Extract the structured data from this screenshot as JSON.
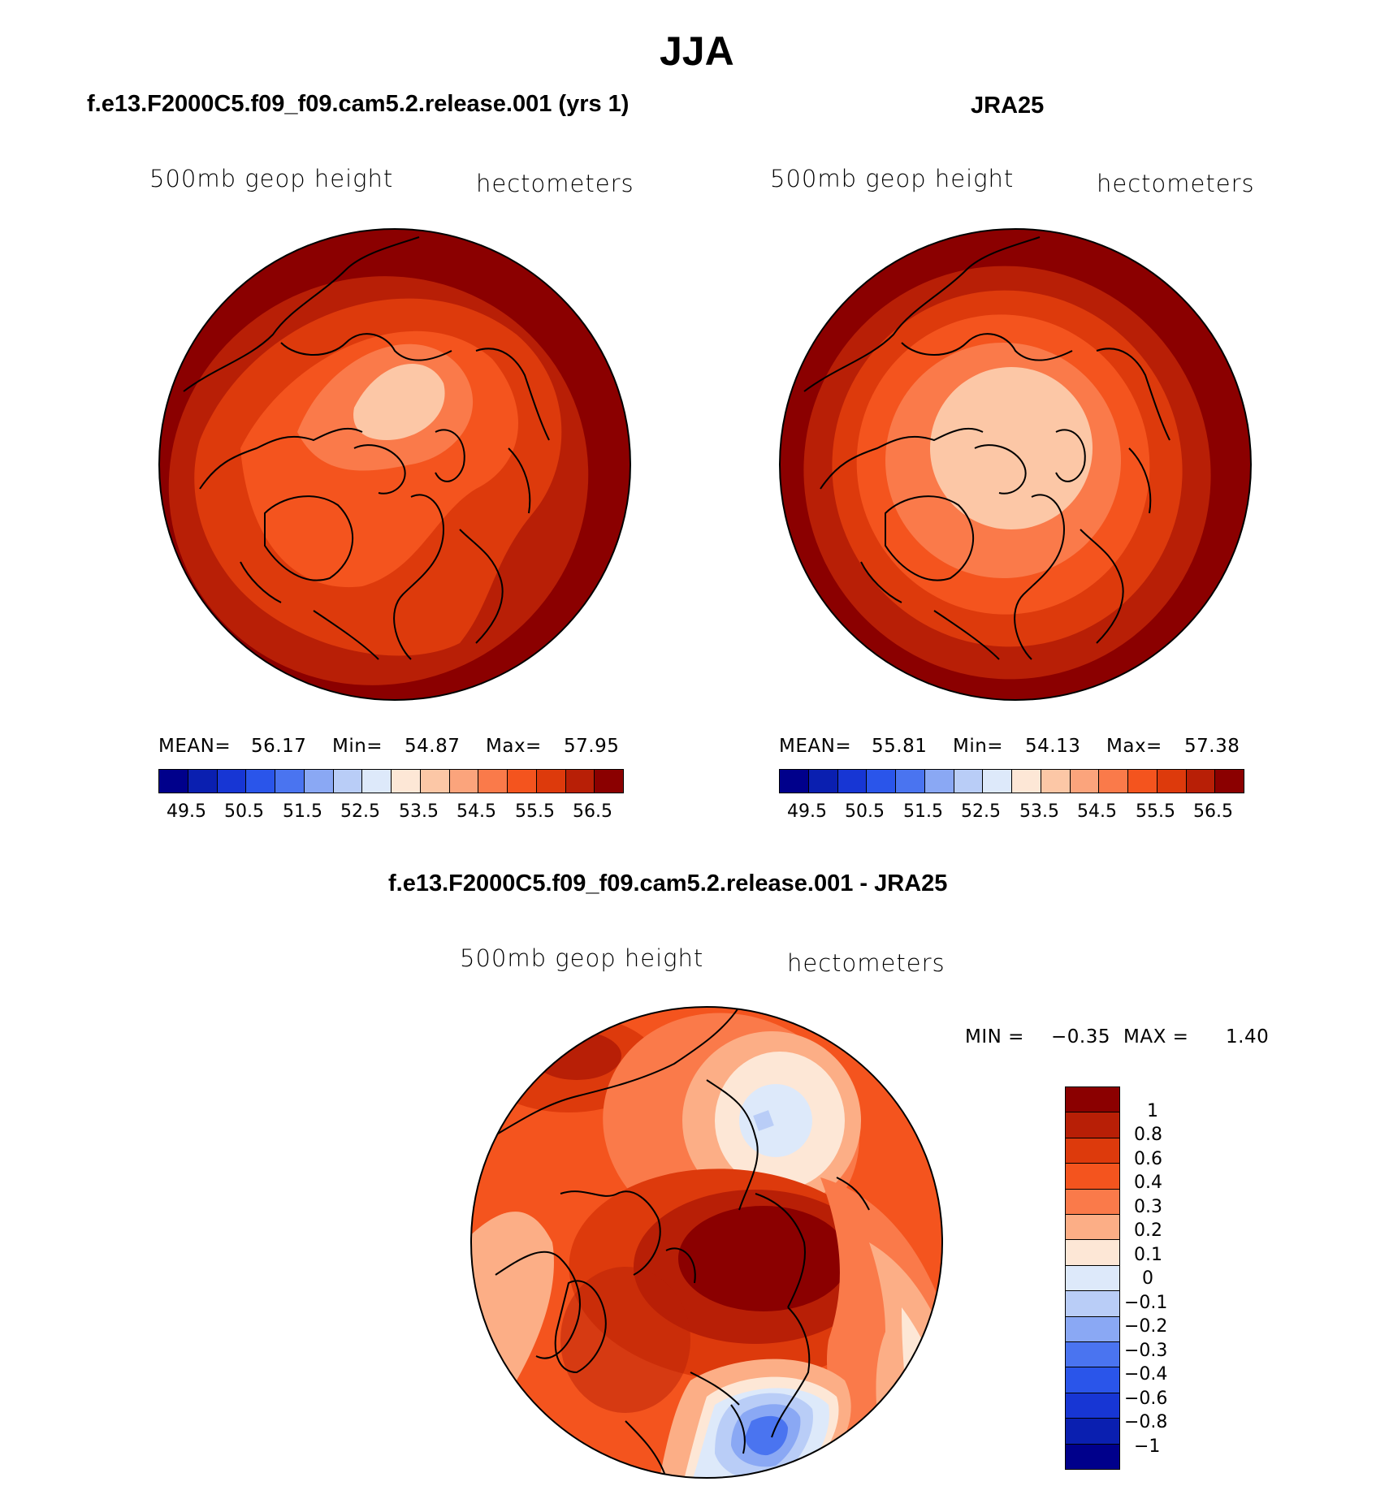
{
  "figure": {
    "season": "JJA"
  },
  "panels": [
    {
      "title": "f.e13.F2000C5.f09_f09.cam5.2.release.001 (yrs 1)",
      "left_label": "500mb geop height",
      "right_label": "hectometers",
      "stats": {
        "mean_label": "MEAN=",
        "mean": "56.17",
        "min_label": "Min=",
        "min": "54.87",
        "max_label": "Max=",
        "max": "57.95"
      }
    },
    {
      "title": "JRA25",
      "left_label": "500mb geop height",
      "right_label": "hectometers",
      "stats": {
        "mean_label": "MEAN=",
        "mean": "55.81",
        "min_label": "Min=",
        "min": "54.13",
        "max_label": "Max=",
        "max": "57.38"
      }
    },
    {
      "title": "f.e13.F2000C5.f09_f09.cam5.2.release.001 - JRA25",
      "left_label": "500mb geop height",
      "right_label": "hectometers",
      "stats": {
        "min_label": "MIN =",
        "min": "−0.35",
        "max_label": "MAX =",
        "max": "1.40"
      }
    }
  ],
  "colorbar_abs": {
    "colors": [
      "#00008b",
      "#0a1fb0",
      "#1736d4",
      "#2a55ea",
      "#4a74f0",
      "#8aa8f4",
      "#b9cdf7",
      "#dde9fa",
      "#fde7d6",
      "#fcc7a6",
      "#fba47c",
      "#fa7a4a",
      "#f4541e",
      "#dd3a0c",
      "#b81f06",
      "#8b0000"
    ],
    "ticks": [
      "49.5",
      "50.5",
      "51.5",
      "52.5",
      "53.5",
      "54.5",
      "55.5",
      "56.5"
    ]
  },
  "colorbar_diff": {
    "colors": [
      "#8b0000",
      "#b81f06",
      "#dd3a0c",
      "#f4541e",
      "#fa7a4a",
      "#fcae86",
      "#fde7d6",
      "#dde9fa",
      "#b9cdf7",
      "#8aa8f4",
      "#4a74f0",
      "#2a55ea",
      "#1736d4",
      "#0a1fb0",
      "#00008b"
    ],
    "ticks": [
      "1",
      "0.8",
      "0.6",
      "0.4",
      "0.3",
      "0.2",
      "0.1",
      "0",
      "−0.1",
      "−0.2",
      "−0.3",
      "−0.4",
      "−0.6",
      "−0.8",
      "−1"
    ]
  }
}
